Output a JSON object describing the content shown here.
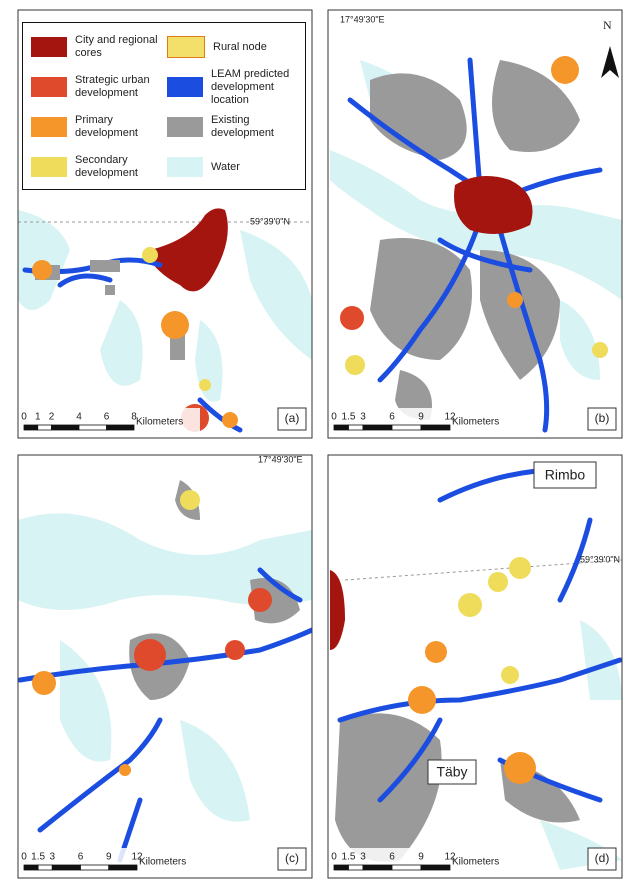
{
  "legend": {
    "items": [
      {
        "label": "City and regional cores",
        "color": "#a5150f"
      },
      {
        "label": "Strategic urban development",
        "color": "#e04a2c"
      },
      {
        "label": "Primary development",
        "color": "#f5962a"
      },
      {
        "label": "Secondary development",
        "color": "#eedc5a"
      },
      {
        "label": "Rural node",
        "color": "#f2e06a"
      },
      {
        "label": "LEAM predicted development location",
        "color": "#1b4de0"
      },
      {
        "label": "Existing development",
        "color": "#9a9a9a"
      },
      {
        "label": "Water",
        "color": "#d8f3f3"
      }
    ]
  },
  "panels": [
    {
      "label": "(a)",
      "coordinates": [
        "59°39'0\"N"
      ],
      "scale": {
        "ticks": [
          0,
          1,
          2,
          4,
          6,
          8
        ],
        "unit": "Kilometers"
      }
    },
    {
      "label": "(b)",
      "coordinates": [
        "17°49'30\"E"
      ],
      "north": "N",
      "scale": {
        "ticks": [
          0,
          1.5,
          3,
          6,
          9,
          12
        ],
        "unit": "Kilometers"
      }
    },
    {
      "label": "(c)",
      "coordinates": [
        "17°49'30\"E"
      ],
      "scale": {
        "ticks": [
          0,
          1.5,
          3,
          6,
          9,
          12
        ],
        "unit": "Kilometers"
      }
    },
    {
      "label": "(d)",
      "coordinates": [
        "59°39'0\"N"
      ],
      "places": [
        "Rimbo",
        "Täby"
      ],
      "scale": {
        "ticks": [
          0,
          1.5,
          3,
          6,
          9,
          12
        ],
        "unit": "Kilometers"
      }
    }
  ]
}
